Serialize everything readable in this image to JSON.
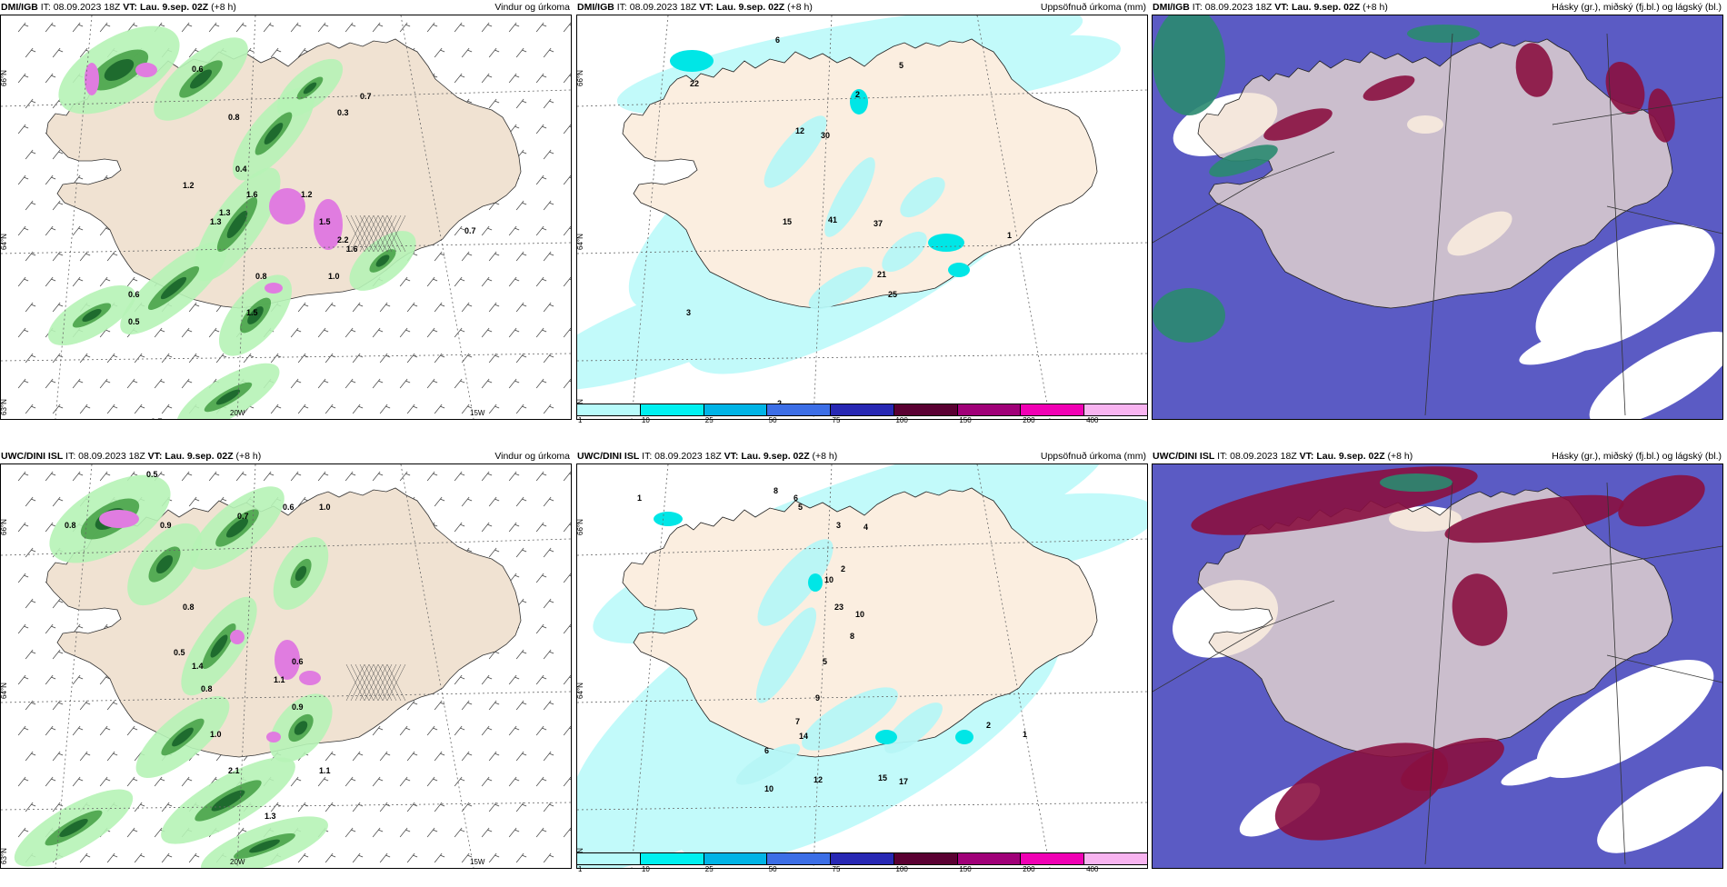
{
  "panels": [
    {
      "model": "DMI/IGB",
      "it": "IT: 08.09.2023 18Z",
      "vt_label": "VT:",
      "vt": "Lau. 9.sep. 02Z",
      "step": "(+8 h)",
      "right": "Vindur og úrkoma",
      "type": "wind"
    },
    {
      "model": "DMI/IGB",
      "it": "IT: 08.09.2023 18Z",
      "vt_label": "VT:",
      "vt": "Lau. 9.sep. 02Z",
      "step": "(+8 h)",
      "right": "Uppsöfnuð úrkoma (mm)",
      "type": "precip"
    },
    {
      "model": "DMI/IGB",
      "it": "IT: 08.09.2023 18Z",
      "vt_label": "VT:",
      "vt": "Lau. 9.sep. 02Z",
      "step": "(+8 h)",
      "right": "Hásky (gr.), miðský (fj.bl.) og lágský (bl.)",
      "type": "cloud"
    },
    {
      "model": "UWC/DINI ISL",
      "it": "IT: 08.09.2023 18Z",
      "vt_label": "VT:",
      "vt": "Lau. 9.sep. 02Z",
      "step": "(+8 h)",
      "right": "Vindur og úrkoma",
      "type": "wind"
    },
    {
      "model": "UWC/DINI ISL",
      "it": "IT: 08.09.2023 18Z",
      "vt_label": "VT:",
      "vt": "Lau. 9.sep. 02Z",
      "step": "(+8 h)",
      "right": "Uppsöfnuð úrkoma (mm)",
      "type": "precip"
    },
    {
      "model": "UWC/DINI ISL",
      "it": "IT: 08.09.2023 18Z",
      "vt_label": "VT:",
      "vt": "Lau. 9.sep. 02Z",
      "step": "(+8 h)",
      "right": "Hásky (gr.), miðský (fj.bl.) og lágský (bl.)",
      "type": "cloud"
    }
  ],
  "grid_labels": {
    "lat66": "66°N",
    "lat64": "64°N",
    "lat63": "63°N",
    "lon20": "20W",
    "lon15": "15W"
  },
  "legend": {
    "colors": [
      "#b8fbfb",
      "#00f0f0",
      "#00b4e6",
      "#3c6ee6",
      "#2828b4",
      "#5a0032",
      "#a00078",
      "#f000b4",
      "#f8b4f0"
    ],
    "ticks": [
      "1",
      "10",
      "25",
      "50",
      "75",
      "100",
      "150",
      "200",
      "400"
    ]
  },
  "wind_labels_top": [
    "0.6",
    "0.7",
    "0.3",
    "0.8",
    "0.4",
    "1.6",
    "1.2",
    "1.3",
    "1.5",
    "2.2",
    "1.6",
    "1.0",
    "0.7",
    "0.6",
    "0.5",
    "0.7",
    "0.8",
    "1.5",
    "1.2",
    "1.3"
  ],
  "wind_labels_bottom": [
    "0.5",
    "0.8",
    "0.9",
    "0.7",
    "0.6",
    "1.0",
    "0.8",
    "0.5",
    "1.4",
    "0.8",
    "1.1",
    "0.6",
    "0.9",
    "1.0",
    "2.1",
    "1.1",
    "1.3"
  ],
  "precip_labels_top": [
    "6",
    "22",
    "5",
    "2",
    "12",
    "30",
    "15",
    "41",
    "37",
    "21",
    "25",
    "1",
    "2",
    "2",
    "3",
    "3"
  ],
  "precip_labels_bottom": [
    "1",
    "8",
    "6",
    "5",
    "3",
    "4",
    "2",
    "10",
    "23",
    "10",
    "8",
    "5",
    "9",
    "7",
    "14",
    "6",
    "10",
    "12",
    "15",
    "17",
    "2",
    "1",
    "3"
  ]
}
